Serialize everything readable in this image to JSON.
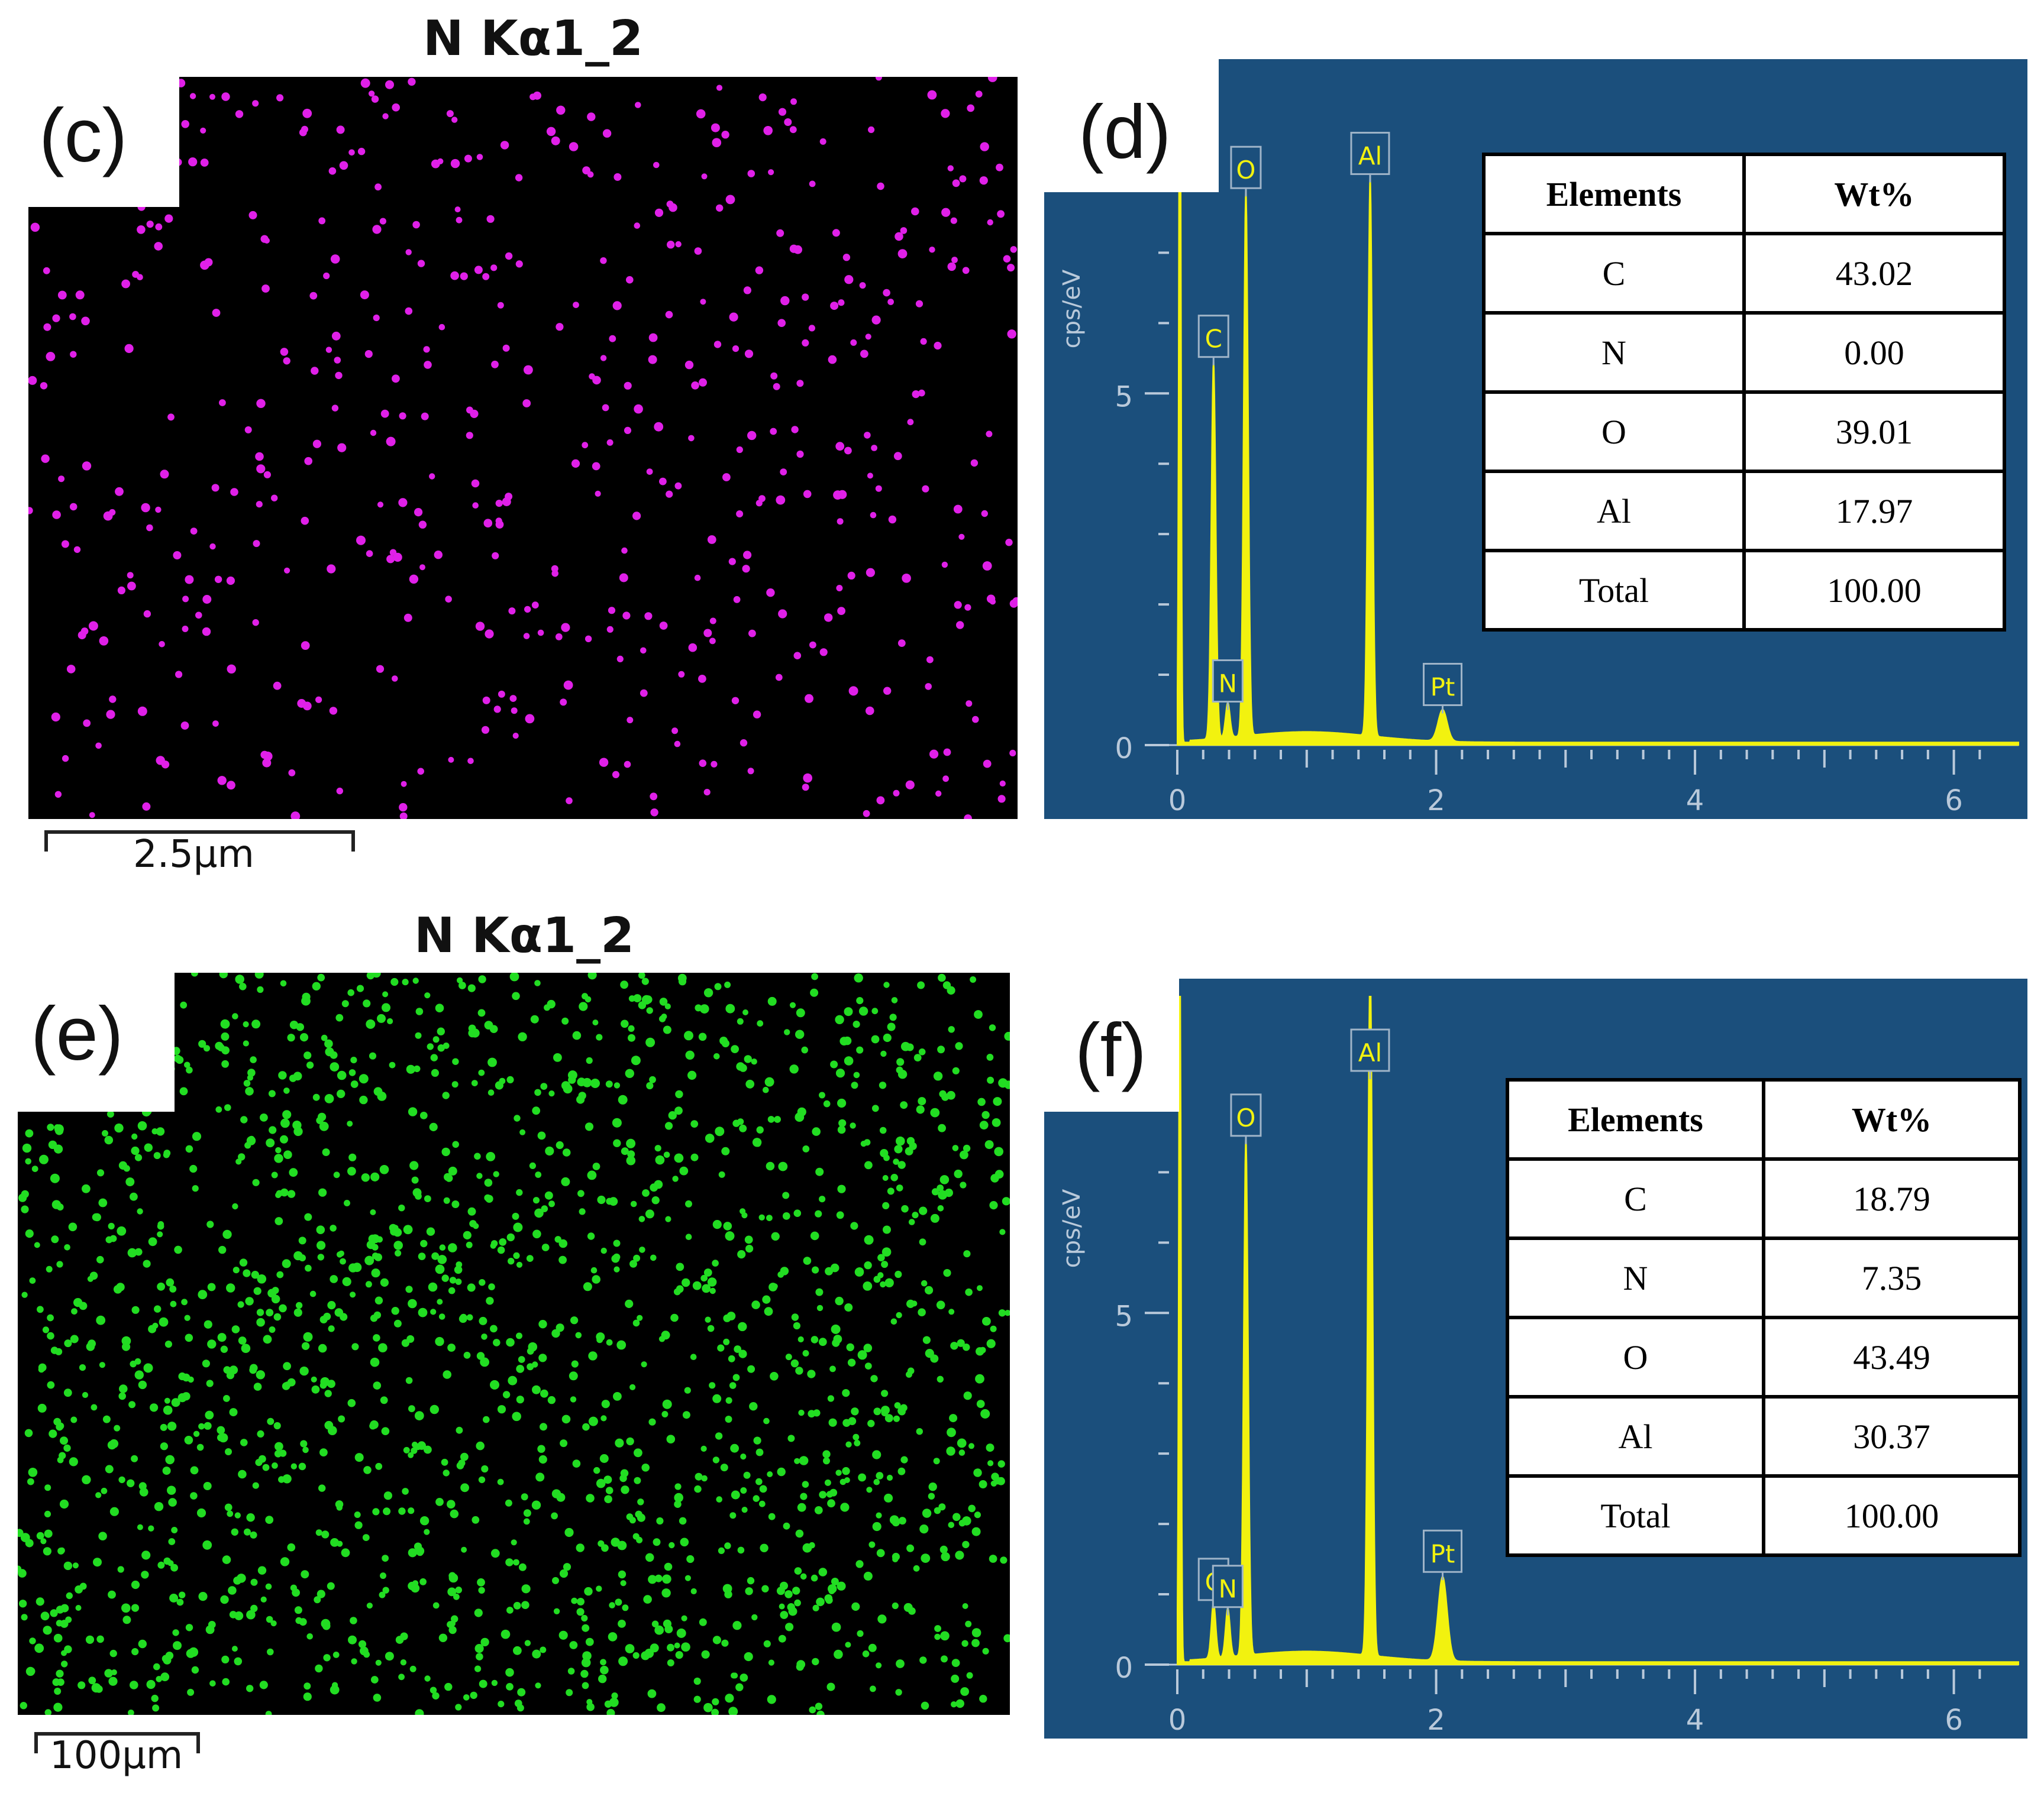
{
  "panels": {
    "c": {
      "letter": "(c)",
      "title": "N Kα1_2",
      "scalebar": "2.5μm",
      "dot_color": "#e020e8"
    },
    "e": {
      "letter": "(e)",
      "title": "N Kα1_2",
      "scalebar": "100μm",
      "dot_color": "#22dd22"
    },
    "d": {
      "letter": "(d)"
    },
    "f": {
      "letter": "(f)"
    }
  },
  "chart_data": [
    {
      "panel": "(d)",
      "type": "line",
      "ylabel": "cps/eV",
      "xlabel": "",
      "xlim": [
        0,
        6.5
      ],
      "ylim": [
        0,
        9.5
      ],
      "x_ticks": [
        "0",
        "2",
        "4",
        "6"
      ],
      "y_ticks": [
        "0",
        "5"
      ],
      "peaks": [
        {
          "label": "C",
          "x": 0.28,
          "y": 5.4
        },
        {
          "label": "N",
          "x": 0.39,
          "y": 0.5
        },
        {
          "label": "O",
          "x": 0.53,
          "y": 7.8
        },
        {
          "label": "Al",
          "x": 1.49,
          "y": 8.0
        },
        {
          "label": "Pt",
          "x": 2.05,
          "y": 0.45
        }
      ],
      "colors": {
        "background": "#1b4f7c",
        "trace": "#f2f20f"
      },
      "table": {
        "headers": [
          "Elements",
          "Wt%"
        ],
        "rows": [
          [
            "C",
            "43.02"
          ],
          [
            "N",
            "0.00"
          ],
          [
            "O",
            "39.01"
          ],
          [
            "Al",
            "17.97"
          ],
          [
            "Total",
            "100.00"
          ]
        ]
      }
    },
    {
      "panel": "(f)",
      "type": "line",
      "ylabel": "cps/eV",
      "xlabel": "",
      "xlim": [
        0,
        6.5
      ],
      "ylim": [
        0,
        9.5
      ],
      "x_ticks": [
        "0",
        "2",
        "4",
        "6"
      ],
      "y_ticks": [
        "0",
        "5"
      ],
      "peaks": [
        {
          "label": "C",
          "x": 0.28,
          "y": 0.8
        },
        {
          "label": "N",
          "x": 0.39,
          "y": 0.7
        },
        {
          "label": "O",
          "x": 0.53,
          "y": 7.4
        },
        {
          "label": "Al",
          "x": 1.49,
          "y": 10.2
        },
        {
          "label": "Pt",
          "x": 2.05,
          "y": 1.2
        }
      ],
      "colors": {
        "background": "#1b4f7c",
        "trace": "#f2f20f"
      },
      "table": {
        "headers": [
          "Elements",
          "Wt%"
        ],
        "rows": [
          [
            "C",
            "18.79"
          ],
          [
            "N",
            "7.35"
          ],
          [
            "O",
            "43.49"
          ],
          [
            "Al",
            "30.37"
          ],
          [
            "Total",
            "100.00"
          ]
        ]
      }
    }
  ]
}
